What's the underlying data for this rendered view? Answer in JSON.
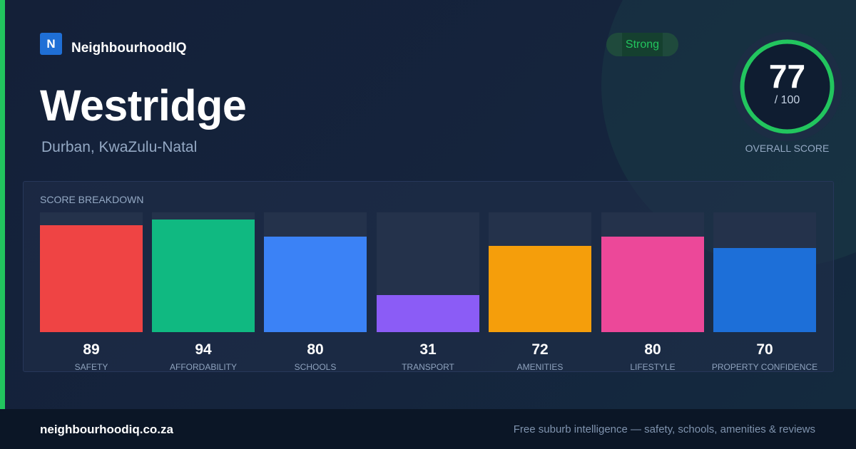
{
  "brand": {
    "logo_letter": "N",
    "name": "NeighbourhoodIQ"
  },
  "suburb": {
    "name": "Westridge",
    "location": "Durban, KwaZulu-Natal"
  },
  "rating": {
    "badge": "Strong",
    "badge_color": "#22c55e"
  },
  "overall": {
    "score": "77",
    "max": "/ 100",
    "label": "OVERALL SCORE",
    "score_fraction": 0.77,
    "ring_color": "#22c55e"
  },
  "breakdown": {
    "title": "SCORE BREAKDOWN",
    "scale_max": 100,
    "items": [
      {
        "label": "SAFETY",
        "value": "89",
        "score": 89,
        "color": "#ef4444"
      },
      {
        "label": "AFFORDABILITY",
        "value": "94",
        "score": 94,
        "color": "#10b981"
      },
      {
        "label": "SCHOOLS",
        "value": "80",
        "score": 80,
        "color": "#3b82f6"
      },
      {
        "label": "TRANSPORT",
        "value": "31",
        "score": 31,
        "color": "#8b5cf6"
      },
      {
        "label": "AMENITIES",
        "value": "72",
        "score": 72,
        "color": "#f59e0b"
      },
      {
        "label": "LIFESTYLE",
        "value": "80",
        "score": 80,
        "color": "#ec4899"
      },
      {
        "label": "PROPERTY CONFIDENCE",
        "value": "70",
        "score": 70,
        "color": "#1d6fd8"
      }
    ]
  },
  "footer": {
    "url": "neighbourhoodiq.co.za",
    "tagline": "Free suburb intelligence — safety, schools, amenities & reviews"
  }
}
